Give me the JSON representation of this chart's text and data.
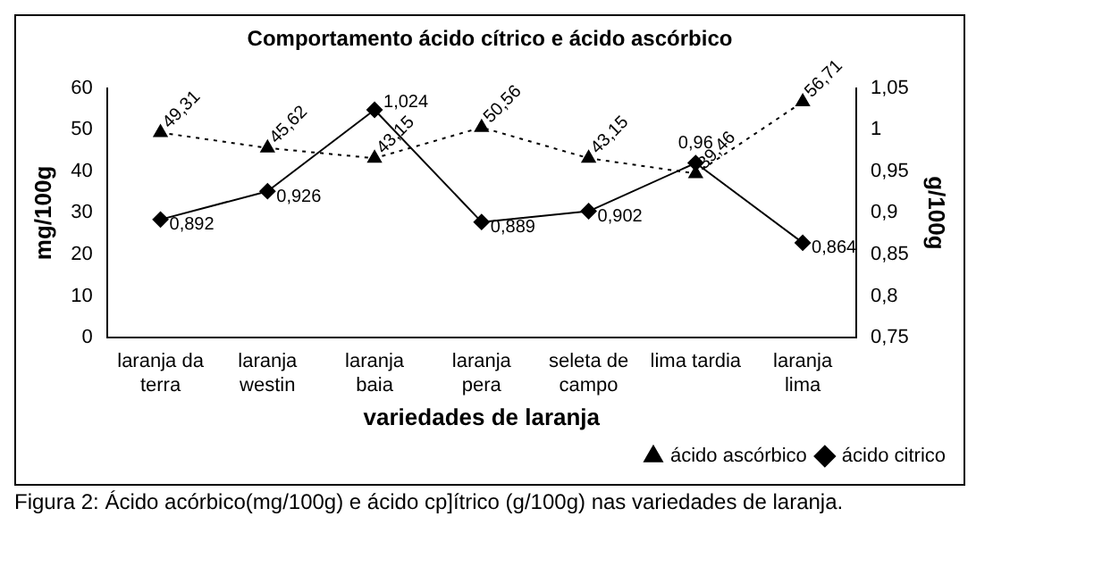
{
  "chart_data": {
    "type": "line",
    "title": "Comportamento ácido cítrico e ácido ascórbico",
    "xlabel": "variedades de laranja",
    "ylabel": "mg/100g",
    "y2label": "g/100g",
    "categories": [
      "laranja da terra",
      "laranja westin",
      "laranja baia",
      "laranja pera",
      "seleta de campo",
      "lima tardia",
      "laranja lima"
    ],
    "series": [
      {
        "name": "ácido ascórbico",
        "color": "#000000",
        "marker": "triangle",
        "line_style": "dotted",
        "values": [
          49.31,
          45.62,
          43.15,
          50.56,
          43.15,
          39.46,
          56.71
        ],
        "value_labels": [
          "49,31",
          "45,62",
          "43,15",
          "50,56",
          "43,15",
          "39,46",
          "56,71"
        ]
      },
      {
        "name": "ácido citrico",
        "color": "#000000",
        "marker": "diamond",
        "line_style": "solid",
        "axis": "y2",
        "values": [
          0.892,
          0.926,
          1.024,
          0.889,
          0.902,
          0.96,
          0.864
        ],
        "value_labels": [
          "0,892",
          "0,926",
          "1,024",
          "0,889",
          "0,902",
          "0,96",
          "0,864"
        ]
      }
    ],
    "ylim": [
      0,
      60
    ],
    "yticks": [
      0,
      10,
      20,
      30,
      40,
      50,
      60
    ],
    "y2lim": [
      0.75,
      1.05
    ],
    "y2ticks": [
      {
        "value": 0.75,
        "label": "0,75"
      },
      {
        "value": 0.8,
        "label": "0,8"
      },
      {
        "value": 0.85,
        "label": "0,85"
      },
      {
        "value": 0.9,
        "label": "0,9"
      },
      {
        "value": 0.95,
        "label": "0,95"
      },
      {
        "value": 1,
        "label": "1"
      },
      {
        "value": 1.05,
        "label": "1,05"
      }
    ],
    "grid": false,
    "legend": "bottom right",
    "annotations": [
      "Figura 2: Ácido acórbico(mg/100g) e ácido cp]ítrico (g/100g) nas variedades de laranja."
    ]
  }
}
